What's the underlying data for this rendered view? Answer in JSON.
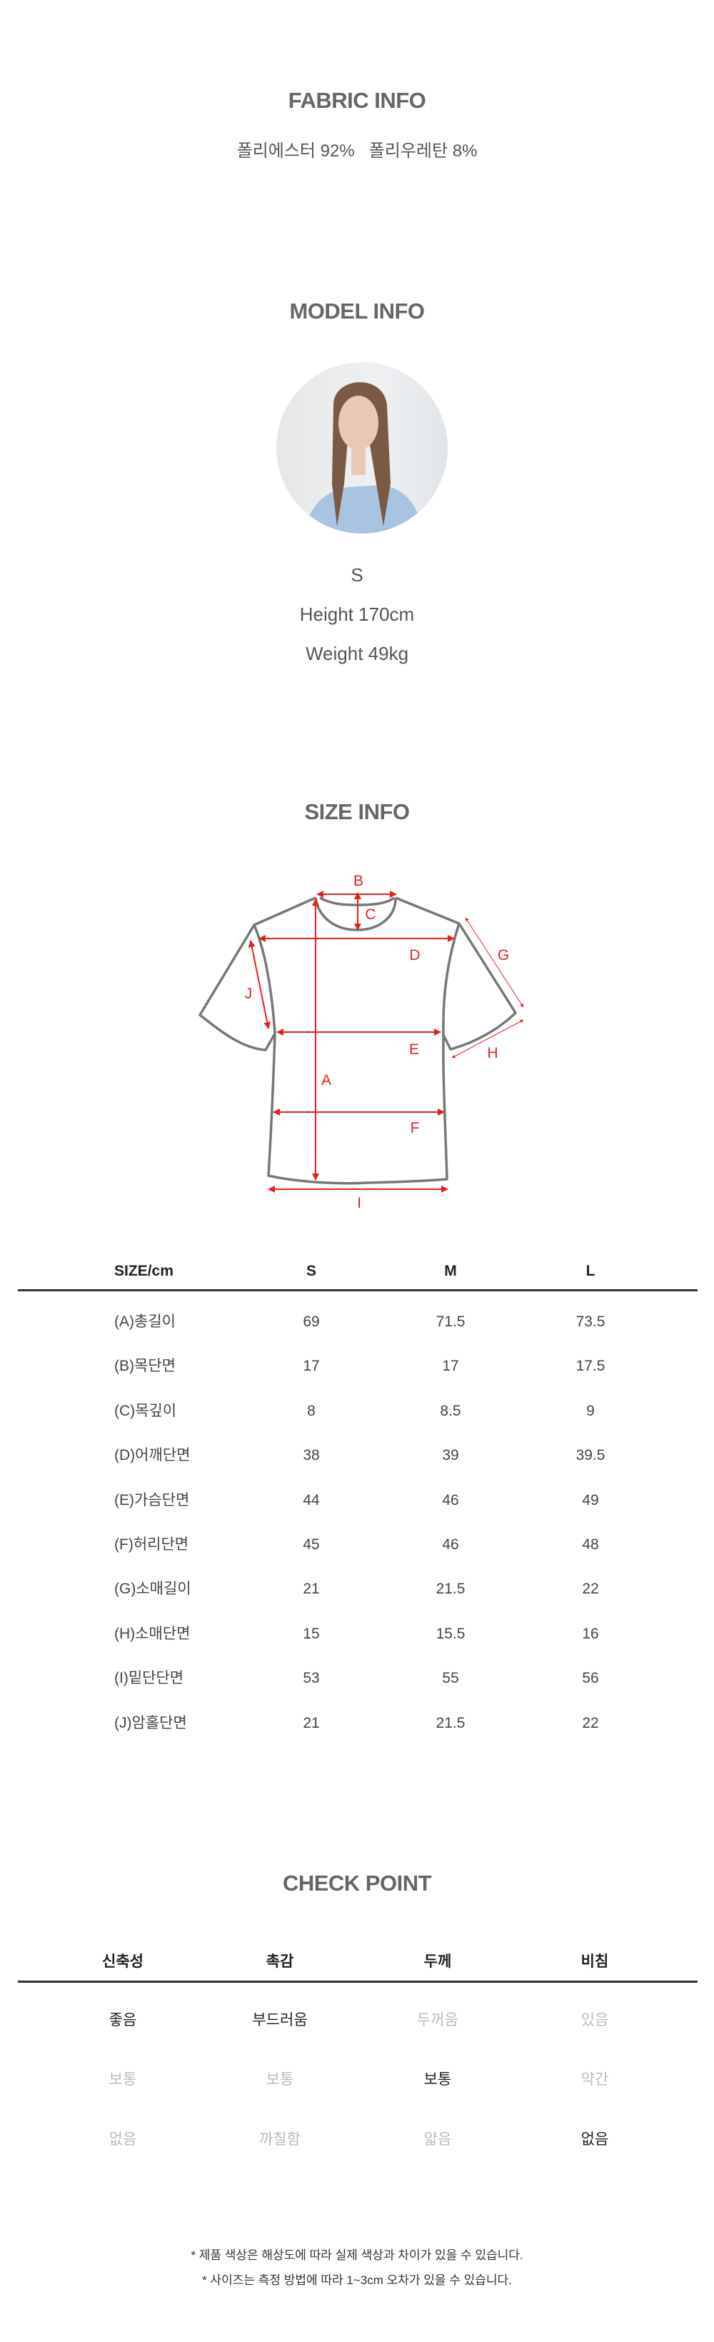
{
  "fabric": {
    "title": "FABRIC INFO",
    "composition": "폴리에스터 92%   폴리우레탄 8%"
  },
  "model": {
    "title": "MODEL INFO",
    "size": "S",
    "height": "Height 170cm",
    "weight": "Weight 49kg"
  },
  "size_info": {
    "title": "SIZE INFO",
    "diagram_labels": [
      "A",
      "B",
      "C",
      "D",
      "E",
      "F",
      "G",
      "H",
      "I",
      "J"
    ],
    "accent_color": "#e52020",
    "table": {
      "headers": [
        "SIZE/cm",
        "S",
        "M",
        "L"
      ],
      "rows": [
        {
          "label": "(A)총길이",
          "values": [
            "69",
            "71.5",
            "73.5"
          ]
        },
        {
          "label": "(B)목단면",
          "values": [
            "17",
            "17",
            "17.5"
          ]
        },
        {
          "label": "(C)목깊이",
          "values": [
            "8",
            "8.5",
            "9"
          ]
        },
        {
          "label": "(D)어깨단면",
          "values": [
            "38",
            "39",
            "39.5"
          ]
        },
        {
          "label": "(E)가슴단면",
          "values": [
            "44",
            "46",
            "49"
          ]
        },
        {
          "label": "(F)허리단면",
          "values": [
            "45",
            "46",
            "48"
          ]
        },
        {
          "label": "(G)소매길이",
          "values": [
            "21",
            "21.5",
            "22"
          ]
        },
        {
          "label": "(H)소매단면",
          "values": [
            "15",
            "15.5",
            "16"
          ]
        },
        {
          "label": "(I)밑단단면",
          "values": [
            "53",
            "55",
            "56"
          ]
        },
        {
          "label": "(J)암홀단면",
          "values": [
            "21",
            "21.5",
            "22"
          ]
        }
      ]
    }
  },
  "check_point": {
    "title": "CHECK POINT",
    "columns": [
      {
        "header": "신축성",
        "options": [
          "좋음",
          "보통",
          "없음"
        ],
        "selected": 0
      },
      {
        "header": "촉감",
        "options": [
          "부드러움",
          "보통",
          "까칠함"
        ],
        "selected": 0
      },
      {
        "header": "두께",
        "options": [
          "두꺼움",
          "보통",
          "얇음"
        ],
        "selected": 1
      },
      {
        "header": "비침",
        "options": [
          "있음",
          "약간",
          "없음"
        ],
        "selected": 2
      }
    ]
  },
  "notes": [
    "* 제품 색상은 해상도에 따라 실제 색상과 차이가 있을 수 있습니다.",
    "* 사이즈는 측정 방법에 따라 1~3cm 오차가 있을 수 있습니다."
  ]
}
